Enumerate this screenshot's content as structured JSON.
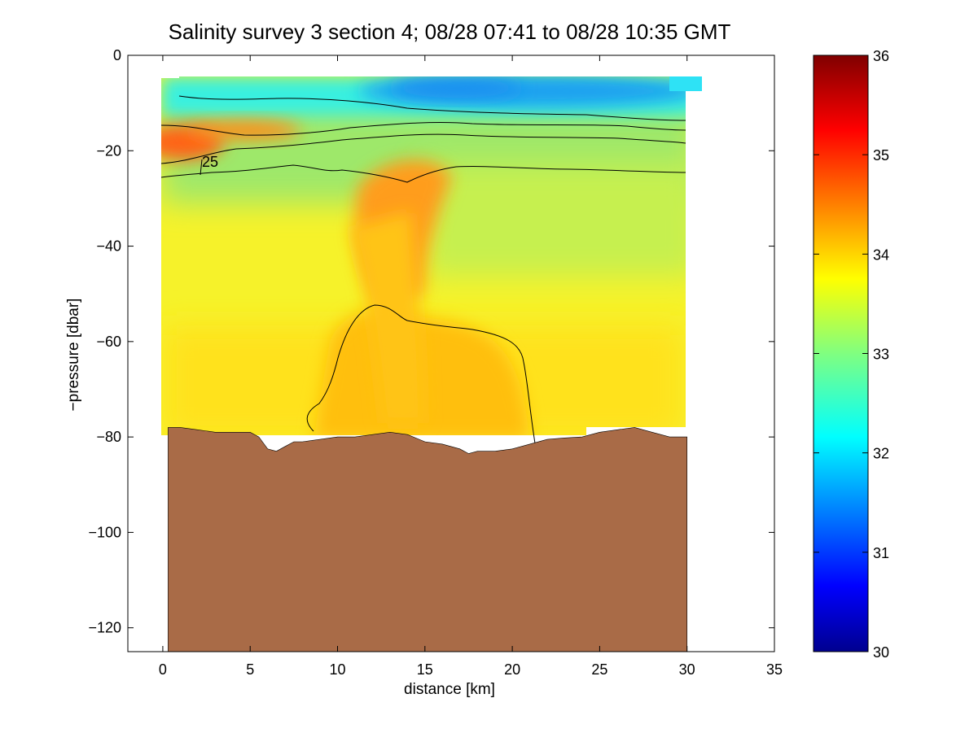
{
  "chart_data": {
    "type": "heatmap",
    "title": "Salinity survey 3 section 4; 08/28 07:41 to 08/28 10:35 GMT",
    "xlabel": "distance [km]",
    "ylabel": "−pressure [dbar]",
    "xlim": [
      -2,
      35
    ],
    "ylim": [
      -125,
      0
    ],
    "x_ticks": [
      0,
      5,
      10,
      15,
      20,
      25,
      30,
      35
    ],
    "x_tick_labels": [
      "0",
      "5",
      "10",
      "15",
      "20",
      "25",
      "30",
      "35"
    ],
    "y_ticks": [
      0,
      -20,
      -40,
      -60,
      -80,
      -100,
      -120
    ],
    "y_tick_labels": [
      "0",
      "−20",
      "−40",
      "−60",
      "−80",
      "−100",
      "−120"
    ],
    "colorbar": {
      "min": 30,
      "max": 36,
      "ticks": [
        30,
        31,
        32,
        33,
        34,
        35,
        36
      ],
      "tick_labels": [
        "30",
        "31",
        "32",
        "33",
        "34",
        "35",
        "36"
      ],
      "colormap": "jet"
    },
    "contour_labels": [
      {
        "text": "25",
        "x": 2.8,
        "y": -22.5
      }
    ],
    "salinity_regions": [
      {
        "name": "surface-fresh",
        "x": [
          16,
          29
        ],
        "y": [
          -5,
          -13
        ],
        "value": 31.6
      },
      {
        "name": "surface-cyan",
        "x": [
          5,
          30
        ],
        "y": [
          -5,
          -12
        ],
        "value": 32.2
      },
      {
        "name": "near-shore-salty",
        "x": [
          0,
          5
        ],
        "y": [
          -12,
          -24
        ],
        "value": 34.9
      },
      {
        "name": "subsurface-core",
        "x": [
          10,
          21
        ],
        "y": [
          -25,
          -80
        ],
        "value": 34.2
      },
      {
        "name": "interior",
        "x": [
          0,
          30
        ],
        "y": [
          -30,
          -78
        ],
        "value": 33.8
      }
    ],
    "seafloor_depth": {
      "x": [
        0.3,
        1,
        2,
        3,
        4,
        5,
        5.5,
        6,
        6.5,
        7,
        7.5,
        8,
        9,
        10,
        11,
        12,
        13,
        14,
        15,
        16,
        17,
        17.5,
        18,
        19,
        20,
        21,
        22,
        23,
        24,
        25,
        26,
        27,
        28,
        29,
        30
      ],
      "y": [
        -78,
        -78,
        -78.5,
        -79,
        -79,
        -79,
        -80,
        -82.5,
        -83,
        -82,
        -81,
        -81,
        -80.5,
        -80,
        -80,
        -79.5,
        -79,
        -79.5,
        -81,
        -81.5,
        -82.5,
        -83.5,
        -83,
        -83,
        -82.5,
        -81.5,
        -80.5,
        -80.2,
        -80,
        -79,
        -78.5,
        -78,
        -79,
        -80,
        -80
      ]
    },
    "seafloor_color": "#a96b47"
  }
}
